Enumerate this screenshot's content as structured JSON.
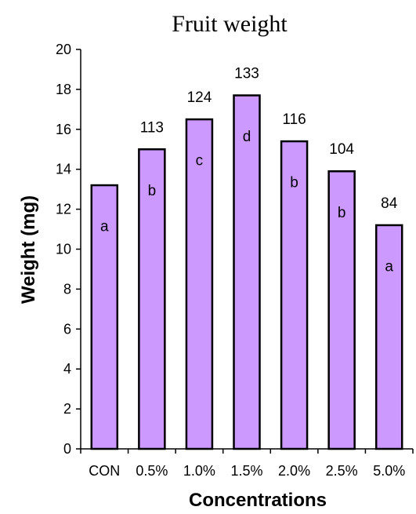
{
  "chart_data": {
    "type": "bar",
    "title": "Fruit weight",
    "xlabel": "Concentrations",
    "ylabel": "Weight (mg)",
    "ylim": [
      0,
      20
    ],
    "yticks": [
      0,
      2,
      4,
      6,
      8,
      10,
      12,
      14,
      16,
      18,
      20
    ],
    "grid": false,
    "bar_color": "#cc99ff",
    "categories": [
      "CON",
      "0.5%",
      "1.0%",
      "1.5%",
      "2.0%",
      "2.5%",
      "5.0%"
    ],
    "values": [
      13.2,
      15.0,
      16.5,
      17.7,
      15.4,
      13.9,
      11.2
    ],
    "data_labels": [
      "",
      "113",
      "124",
      "133",
      "116",
      "104",
      "84"
    ],
    "group_letters": [
      "a",
      "b",
      "c",
      "d",
      "b",
      "b",
      "a"
    ]
  }
}
